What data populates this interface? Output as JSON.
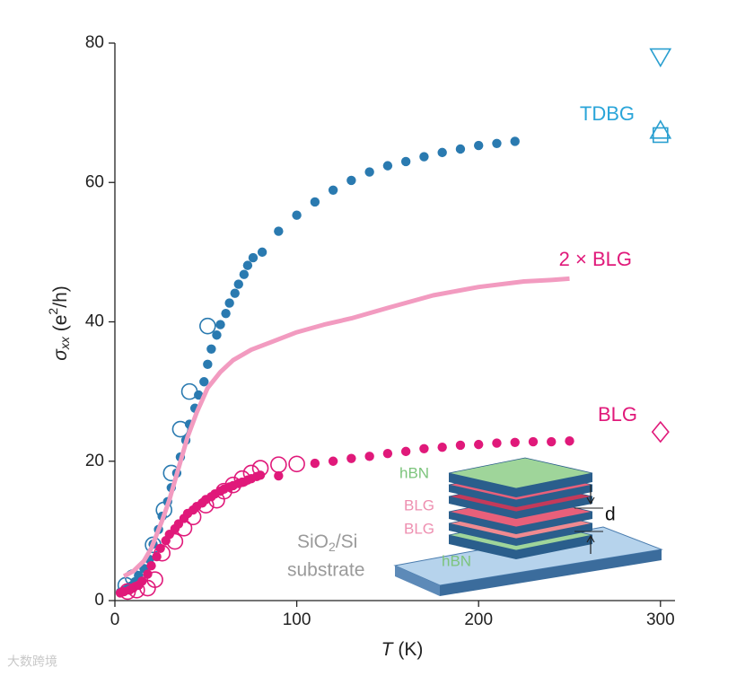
{
  "chart_data": {
    "type": "scatter",
    "xlabel": [
      "T",
      " (K)"
    ],
    "ylabel": [
      "σ",
      "xx",
      " (e",
      "2",
      "/h)"
    ],
    "xlim": [
      0,
      308
    ],
    "ylim": [
      0,
      80
    ],
    "xticks": [
      0,
      100,
      200,
      300
    ],
    "yticks": [
      0,
      20,
      40,
      60,
      80
    ],
    "series": [
      {
        "style": "filled",
        "color": "#2a7ab0",
        "x": [
          3,
          5,
          7,
          9,
          11,
          13,
          16,
          19,
          21,
          24,
          26,
          29,
          31,
          34,
          36,
          39,
          41,
          44,
          46,
          49,
          51,
          53,
          56,
          58,
          61,
          63,
          66,
          68,
          71,
          73,
          76,
          81,
          90,
          100,
          110,
          120,
          130,
          140,
          150,
          160,
          170,
          180,
          190,
          200,
          210,
          220
        ],
        "values": [
          1.2,
          1.4,
          1.7,
          2.1,
          2.7,
          3.6,
          4.6,
          5.9,
          8.1,
          10.2,
          12.1,
          14.2,
          16.2,
          18.3,
          20.6,
          23.0,
          25.3,
          27.6,
          29.5,
          31.4,
          33.9,
          36.1,
          38.1,
          39.6,
          41.2,
          42.7,
          44.1,
          45.4,
          46.8,
          48.1,
          49.2,
          50.0,
          53.0,
          55.3,
          57.2,
          58.9,
          60.3,
          61.5,
          62.4,
          63.0,
          63.7,
          64.3,
          64.8,
          65.3,
          65.6,
          65.9
        ]
      },
      {
        "style": "open",
        "color": "#2a7ab0",
        "x": [
          6,
          10,
          21,
          27,
          31,
          36,
          41,
          51
        ],
        "values": [
          2.2,
          3.3,
          8.0,
          13.0,
          18.3,
          24.6,
          30.0,
          39.4
        ]
      },
      {
        "style": "line",
        "color": "#f29bc0",
        "x": [
          5,
          10,
          16,
          20,
          26,
          30,
          35,
          40,
          45,
          51,
          58,
          65,
          75,
          85,
          100,
          115,
          130,
          150,
          175,
          200,
          225,
          240,
          250
        ],
        "values": [
          3.5,
          4.2,
          5.7,
          7.5,
          11.5,
          14.5,
          19,
          23.5,
          27,
          30.5,
          32.8,
          34.5,
          36,
          37,
          38.5,
          39.6,
          40.5,
          42,
          43.8,
          45,
          45.8,
          46,
          46.2
        ]
      },
      {
        "style": "filled",
        "color": "#e0197a",
        "x": [
          3,
          5,
          8,
          10,
          13,
          15,
          18,
          20,
          23,
          25,
          28,
          30,
          33,
          35,
          38,
          40,
          43,
          45,
          48,
          50,
          53,
          55,
          58,
          60,
          63,
          65,
          68,
          70,
          73,
          75,
          78,
          80,
          90,
          110,
          120,
          130,
          140,
          150,
          160,
          170,
          180,
          190,
          200,
          210,
          220,
          230,
          240,
          250
        ],
        "values": [
          1.1,
          1.3,
          1.5,
          1.8,
          2.2,
          2.8,
          3.8,
          5.0,
          6.3,
          7.5,
          8.6,
          9.5,
          10.3,
          11.0,
          11.8,
          12.5,
          13.0,
          13.5,
          14.0,
          14.5,
          14.9,
          15.3,
          15.7,
          16.0,
          16.3,
          16.5,
          16.8,
          17.0,
          17.3,
          17.5,
          17.8,
          18.0,
          17.9,
          19.7,
          20.0,
          20.4,
          20.7,
          21.1,
          21.4,
          21.8,
          22.0,
          22.3,
          22.4,
          22.6,
          22.7,
          22.8,
          22.8,
          22.9
        ]
      },
      {
        "style": "open",
        "color": "#e0197a",
        "x": [
          7,
          12,
          18,
          22,
          26,
          33,
          38,
          43,
          50,
          56,
          60,
          65,
          70,
          75,
          80,
          90,
          100
        ],
        "values": [
          1.3,
          1.5,
          1.8,
          3.0,
          6.8,
          8.5,
          10.4,
          12.0,
          13.7,
          14.4,
          15.7,
          16.6,
          17.5,
          18.3,
          19.0,
          19.5,
          19.6
        ]
      },
      {
        "style": "triangle-down",
        "color": "#2a9fd0",
        "x": [
          300
        ],
        "values": [
          78
        ]
      },
      {
        "style": "triangle-up",
        "color": "#2a9fd0",
        "x": [
          300
        ],
        "values": [
          67.4
        ]
      },
      {
        "style": "square",
        "color": "#2a9fd0",
        "x": [
          300
        ],
        "values": [
          66.8
        ]
      },
      {
        "style": "diamond",
        "color": "#e0197a",
        "x": [
          300
        ],
        "values": [
          24.2
        ]
      }
    ],
    "annotations": [
      {
        "text": "TDBG",
        "color": "#2aa5d9"
      },
      {
        "text": "2 × BLG",
        "color": "#e0197a"
      },
      {
        "text": "BLG",
        "color": "#e0197a"
      }
    ]
  },
  "inset": {
    "top_layer": "hBN",
    "layer_2": "BLG",
    "layer_3": "BLG",
    "bottom_layer": "hBN",
    "spacing": "d",
    "substrate": [
      "SiO",
      "2",
      "/Si"
    ],
    "substrate_2": "substrate"
  },
  "watermark": "大数跨境"
}
